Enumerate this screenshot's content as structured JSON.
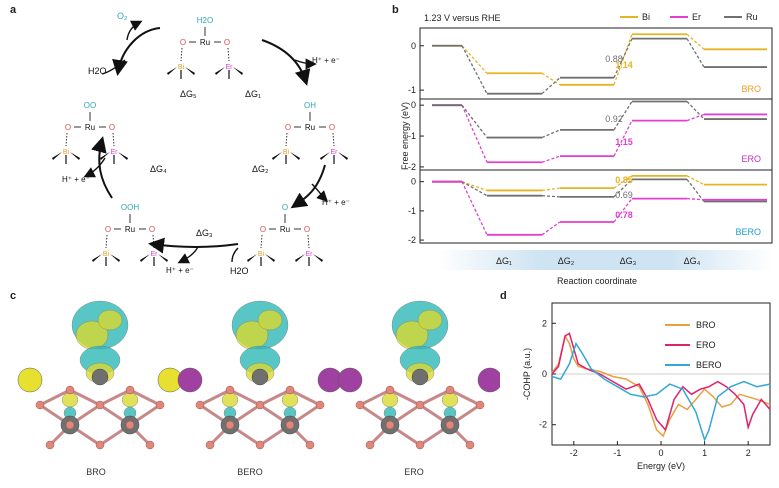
{
  "panels": {
    "a": "a",
    "b": "b",
    "c": "c",
    "d": "d"
  },
  "panel_a": {
    "labels": {
      "o": "O",
      "ru": "Ru",
      "bi": "Bi",
      "er": "Er",
      "h2o": "H2O",
      "h2": "H",
      "two": "2",
      "o_sup": "O",
      "oh": "OH",
      "oo": "OO",
      "ooh": "OOH",
      "hplus": "H⁺ + e⁻",
      "dg1": "ΔG₁",
      "dg2": "ΔG₂",
      "dg3": "ΔG₃",
      "dg4": "ΔG₄",
      "dg5": "ΔG₅",
      "o2": "O₂"
    }
  },
  "chart_data": [
    {
      "type": "line",
      "panel": "b",
      "title": "1.23 V versus RHE",
      "ylabel": "Free energy (eV)",
      "xlabel": "Reaction coordinate",
      "x_ticks": [
        "ΔG₁",
        "ΔG₂",
        "ΔG₃",
        "ΔG₄"
      ],
      "legend": [
        "Bi",
        "Er",
        "Ru"
      ],
      "colors": {
        "Bi": "#e6b422",
        "Er": "#e040d0",
        "Ru": "#707070"
      },
      "subplots": [
        {
          "name": "BRO",
          "name_color": "#e6a020",
          "ylim": [
            -1.2,
            0.4
          ],
          "yticks": [
            0,
            -1
          ],
          "series": [
            {
              "name": "Bi",
              "values": [
                0,
                -0.62,
                -0.88,
                0.26,
                -0.08
              ]
            },
            {
              "name": "Ru",
              "values": [
                0,
                -1.08,
                -0.72,
                0.16,
                -0.48
              ]
            }
          ],
          "annotations": [
            {
              "text": "0.88",
              "color": "#707070"
            },
            {
              "text": "1.14",
              "color": "#e6b422"
            }
          ]
        },
        {
          "name": "ERO",
          "name_color": "#c030c0",
          "ylim": [
            -2.1,
            0.2
          ],
          "yticks": [
            0,
            -1,
            -2
          ],
          "series": [
            {
              "name": "Er",
              "values": [
                0,
                -1.85,
                -1.65,
                -0.5,
                -0.3
              ]
            },
            {
              "name": "Ru",
              "values": [
                0,
                -1.05,
                -0.8,
                0.12,
                -0.45
              ]
            }
          ],
          "annotations": [
            {
              "text": "0.92",
              "color": "#707070"
            },
            {
              "text": "1.15",
              "color": "#e040d0"
            }
          ]
        },
        {
          "name": "BERO",
          "name_color": "#20a0c8",
          "ylim": [
            -2.1,
            0.4
          ],
          "yticks": [
            0,
            -1,
            -2
          ],
          "series": [
            {
              "name": "Bi",
              "values": [
                0,
                -0.3,
                -0.22,
                0.2,
                -0.1
              ]
            },
            {
              "name": "Ru",
              "values": [
                0,
                -0.48,
                -0.52,
                0.08,
                -0.68
              ]
            },
            {
              "name": "Er",
              "values": [
                0,
                -1.82,
                -1.38,
                -0.58,
                -0.62
              ]
            }
          ],
          "annotations": [
            {
              "text": "0.85",
              "color": "#e6b422"
            },
            {
              "text": "0.69",
              "color": "#707070"
            },
            {
              "text": "0.78",
              "color": "#e040d0"
            }
          ]
        }
      ]
    },
    {
      "type": "line",
      "panel": "d",
      "xlabel": "Energy (eV)",
      "ylabel": "-COHP (a.u.)",
      "xlim": [
        -2.5,
        2.5
      ],
      "ylim": [
        -2.8,
        2.8
      ],
      "xticks": [
        -2,
        -1,
        0,
        1,
        2
      ],
      "yticks": [
        2,
        0,
        -2
      ],
      "series": [
        {
          "name": "BRO",
          "color": "#e8a040",
          "x": [
            -2.5,
            -2.35,
            -2.2,
            -2.1,
            -2.0,
            -1.9,
            -1.7,
            -1.4,
            -1.1,
            -0.8,
            -0.5,
            -0.3,
            -0.1,
            0.05,
            0.2,
            0.4,
            0.6,
            0.8,
            1.0,
            1.2,
            1.4,
            1.6,
            1.8,
            2.0,
            2.2,
            2.5
          ],
          "y": [
            0.05,
            0.4,
            1.5,
            1.2,
            0.6,
            0.3,
            0.2,
            0.1,
            -0.1,
            -0.2,
            -0.5,
            -1.2,
            -2.2,
            -2.45,
            -1.8,
            -1.2,
            -1.4,
            -1.0,
            -0.6,
            -0.9,
            -1.3,
            -1.2,
            -0.8,
            -0.9,
            -1.0,
            -1.2
          ]
        },
        {
          "name": "ERO",
          "color": "#e02070",
          "x": [
            -2.5,
            -2.35,
            -2.2,
            -2.1,
            -2.0,
            -1.9,
            -1.7,
            -1.4,
            -1.1,
            -0.8,
            -0.5,
            -0.3,
            -0.1,
            0.1,
            0.3,
            0.5,
            0.7,
            0.9,
            1.1,
            1.3,
            1.5,
            1.7,
            1.9,
            2.0,
            2.1,
            2.3,
            2.5
          ],
          "y": [
            0.0,
            0.3,
            1.5,
            1.6,
            1.0,
            0.4,
            0.2,
            0.0,
            -0.3,
            -0.6,
            -0.4,
            -1.0,
            -1.8,
            -2.2,
            -1.0,
            -0.5,
            -0.8,
            -0.6,
            -0.5,
            -0.3,
            -0.5,
            -0.8,
            -1.2,
            -2.1,
            -1.6,
            -1.0,
            -1.4
          ]
        },
        {
          "name": "BERO",
          "color": "#30a8d8",
          "x": [
            -2.5,
            -2.3,
            -2.1,
            -1.95,
            -1.8,
            -1.6,
            -1.3,
            -1.0,
            -0.7,
            -0.4,
            -0.1,
            0.2,
            0.5,
            0.8,
            1.0,
            1.1,
            1.3,
            1.6,
            1.9,
            2.2,
            2.5
          ],
          "y": [
            -0.1,
            -0.2,
            0.4,
            1.2,
            0.8,
            0.2,
            -0.2,
            -0.5,
            -0.8,
            -0.9,
            -0.8,
            -0.4,
            -0.6,
            -1.5,
            -2.6,
            -2.2,
            -0.9,
            -0.5,
            -0.3,
            -0.5,
            -0.4
          ]
        }
      ]
    }
  ],
  "panel_c": {
    "captions": [
      "BRO",
      "BERO",
      "ERO"
    ],
    "colors": {
      "bi": "#e8e030",
      "er": "#a040a0",
      "ru": "#707070",
      "o": "#e08878",
      "lobe_cyan": "#30b8b8",
      "lobe_yellow": "#d8d830"
    }
  }
}
